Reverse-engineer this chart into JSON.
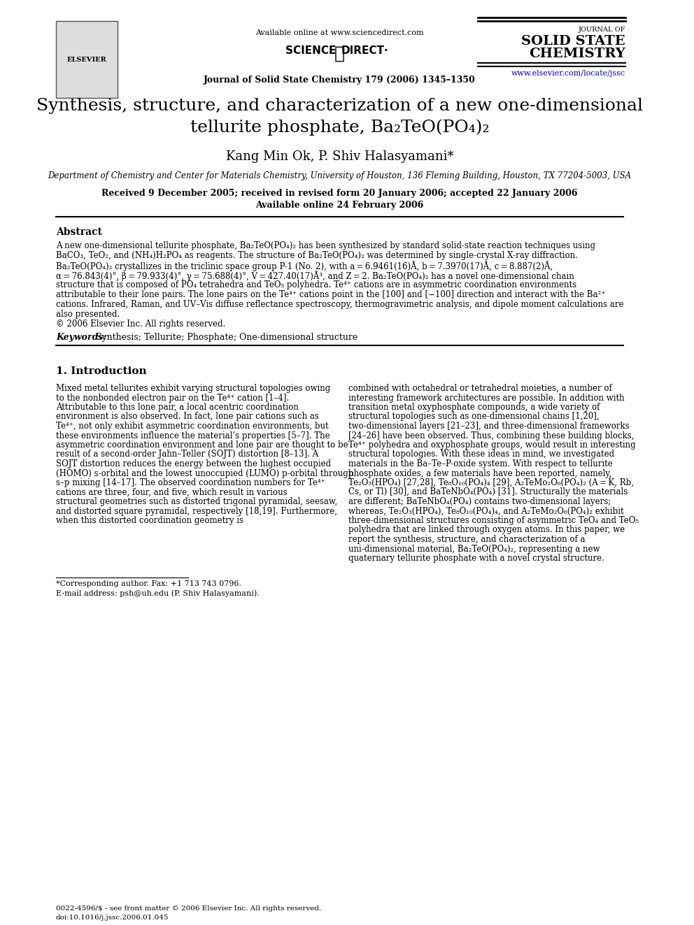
{
  "bg_color": "#ffffff",
  "text_color": "#000000",
  "blue_color": "#0000cc",
  "header": {
    "available_online": "Available online at www.sciencedirect.com",
    "journal_line": "Journal of Solid State Chemistry 179 (2006) 1345–1350",
    "journal_name_line1": "JOURNAL OF",
    "journal_name_line2": "SOLID STATE",
    "journal_name_line3": "CHEMISTRY",
    "website": "www.elsevier.com/locate/jssc"
  },
  "title_line1": "Synthesis, structure, and characterization of a new one-dimensional",
  "title_line2": "tellurite phosphate, Ba₂TeO(PO₄)₂",
  "authors": "Kang Min Ok, P. Shiv Halasyamani*",
  "affiliation": "Department of Chemistry and Center for Materials Chemistry, University of Houston, 136 Fleming Building, Houston, TX 77204-5003, USA",
  "received": "Received 9 December 2005; received in revised form 20 January 2006; accepted 22 January 2006",
  "available": "Available online 24 February 2006",
  "abstract_heading": "Abstract",
  "abstract_text": "A new one-dimensional tellurite phosphate, Ba₂TeO(PO₄)₂ has been synthesized by standard solid-state reaction techniques using\nBaCO₃, TeO₂, and (NH₄)H₂PO₄ as reagents. The structure of Ba₂TeO(PO₄)₂ was determined by single-crystal X-ray diffraction.\nBa₂TeO(PO₄)₂ crystallizes in the triclinic space group P-1 (No. 2), with a = 6.9461(16)Å, b = 7.3970(17)Å, c = 8.887(2)Å,\nα = 76.843(4)°, β = 79.933(4)°, γ = 75.688(4)°, V = 427.40(17)Å³, and Z = 2. Ba₂TeO(PO₄)₂ has a novel one-dimensional chain\nstructure that is composed of PO₄ tetrahedra and TeO₅ polyhedra. Te⁴⁺ cations are in asymmetric coordination environments\nattributable to their lone pairs. The lone pairs on the Te⁴⁺ cations point in the [100] and [−100] direction and interact with the Ba²⁺\ncations. Infrared, Raman, and UV–Vis diffuse reflectance spectroscopy, thermogravimetric analysis, and dipole moment calculations are\nalso presented.\n© 2006 Elsevier Inc. All rights reserved.",
  "keywords_label": "Keywords:",
  "keywords_text": " Synthesis; Tellurite; Phosphate; One-dimensional structure",
  "section1_heading": "1. Introduction",
  "section1_col1": "   Mixed metal tellurites exhibit varying structural topologies owing to the nonbonded electron pair on the Te⁴⁺ cation [1–4]. Attributable to this lone pair, a local acentric coordination environment is also observed. In fact, lone pair cations such as Te⁴⁺, not only exhibit asymmetric coordination environments, but these environments influence the material’s properties [5–7]. The asymmetric coordination environment and lone pair are thought to be result of a second-order Jahn–Teller (SOJT) distortion [8–13]. A SOJT distortion reduces the energy between the highest occupied (HOMO) s-orbital and the lowest unoccupied (LUMO) p-orbital through s–p mixing [14–17]. The observed coordination numbers for Te⁴⁺ cations are three, four, and five, which result in various structural geometries such as distorted trigonal pyramidal, seesaw, and distorted square pyramidal, respectively [18,19]. Furthermore, when this distorted coordination geometry is",
  "section1_col2": "combined with octahedral or tetrahedral moieties, a number of interesting framework architectures are possible. In addition with transition metal oxyphosphate compounds, a wide variety of structural topologies such as one-dimensional chains [1,20], two-dimensional layers [21–23], and three-dimensional frameworks [24–26] have been observed. Thus, combining these building blocks, Te⁴⁺ polyhedra and oxyphosphate groups, would result in interesting structural topologies. With these ideas in mind, we investigated materials in the Ba–Te–P-oxide system. With respect to tellurite phosphate oxides, a few materials have been reported, namely, Te₂O₃(HPO₄) [27,28], Te₈O₁₀(PO₄)₄ [29], A₂TeMo₂O₆(PO₄)₂ (A = K, Rb, Cs, or Tl) [30], and BaTeNbO₄(PO₄) [31]. Structurally the materials are different; BaTeNbO₄(PO₄) contains two-dimensional layers; whereas, Te₂O₃(HPO₄), Te₈O₁₀(PO₄)₄, and A₂TeMo₂O₆(PO₄)₂ exhibit three-dimensional structures consisting of asymmetric TeO₄ and TeO₅ polyhedra that are linked through oxygen atoms. In this paper, we report the synthesis, structure, and characterization of a uni-dimensional material, Ba₂TeO(PO₄)₂, representing a new quaternary tellurite phosphate with a novel crystal structure.",
  "footer_left": "0022-4596/$ - see front matter © 2006 Elsevier Inc. All rights reserved.\ndoi:10.1016/j.jssc.2006.01.045",
  "footnote_star": "*Corresponding author. Fax: +1 713 743 0796.",
  "footnote_email": "E-mail address: psh@uh.edu (P. Shiv Halasyamani)."
}
